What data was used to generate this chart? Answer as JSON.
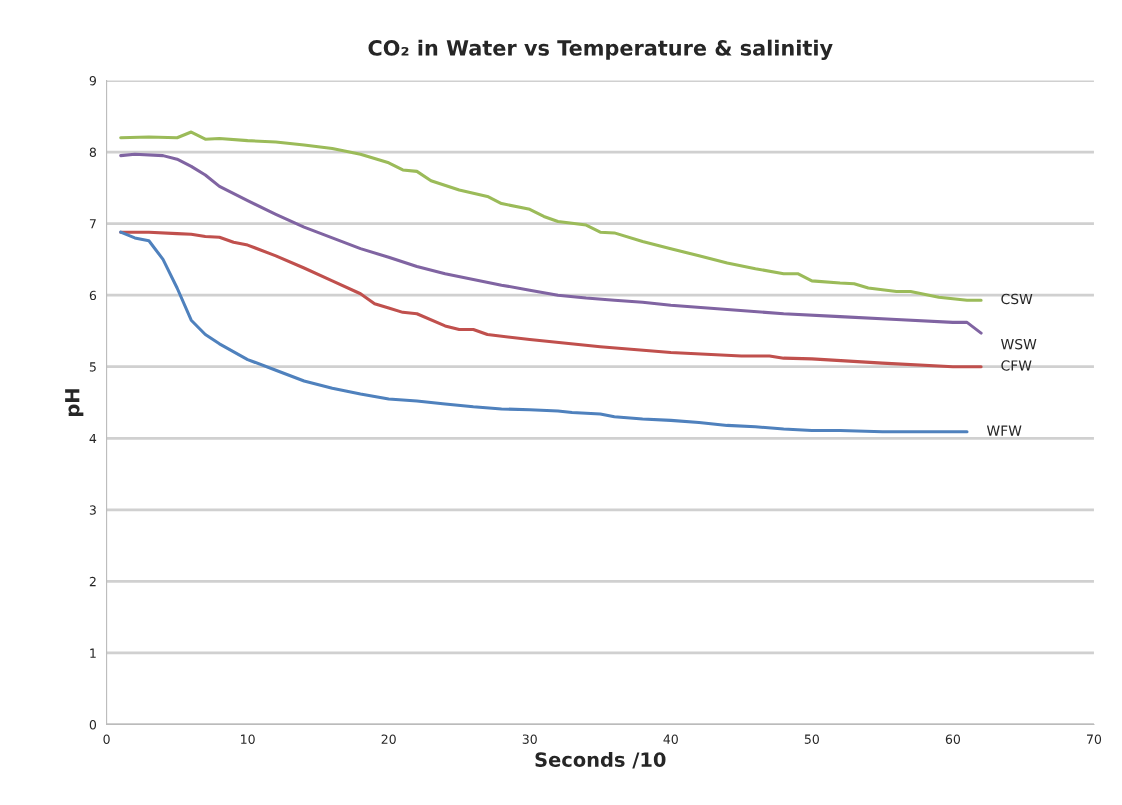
{
  "chart_data": {
    "type": "line",
    "title": "CO₂ in Water vs Temperature & salinitiy",
    "xlabel": "Seconds /10",
    "ylabel": "pH",
    "xlim": [
      0,
      70
    ],
    "xticks": [
      0,
      10,
      20,
      30,
      40,
      50,
      60,
      70
    ],
    "ylim": [
      0,
      9
    ],
    "yticks": [
      0,
      1,
      2,
      3,
      4,
      5,
      6,
      7,
      8,
      9
    ],
    "grid": "y",
    "legend": false,
    "marker": "none",
    "line_style": "solid",
    "series": [
      {
        "name": "CSW",
        "color": "#9bbb59",
        "x": [
          1,
          3,
          5,
          6,
          7,
          8,
          10,
          12,
          14,
          16,
          18,
          20,
          21,
          22,
          23,
          25,
          27,
          28,
          30,
          31,
          32,
          34,
          35,
          36,
          38,
          40,
          42,
          44,
          46,
          48,
          49,
          50,
          52,
          53,
          54,
          56,
          57,
          59,
          61,
          62
        ],
        "values": [
          8.2,
          8.21,
          8.2,
          8.28,
          8.18,
          8.19,
          8.16,
          8.14,
          8.1,
          8.05,
          7.97,
          7.85,
          7.75,
          7.73,
          7.6,
          7.47,
          7.38,
          7.28,
          7.2,
          7.1,
          7.03,
          6.98,
          6.88,
          6.87,
          6.75,
          6.65,
          6.55,
          6.45,
          6.37,
          6.3,
          6.3,
          6.2,
          6.17,
          6.16,
          6.1,
          6.05,
          6.05,
          5.97,
          5.93,
          5.93
        ]
      },
      {
        "name": "WSW",
        "color": "#8064a2",
        "x": [
          1,
          2,
          4,
          5,
          6,
          7,
          8,
          10,
          12,
          14,
          16,
          18,
          20,
          22,
          24,
          26,
          28,
          30,
          32,
          34,
          36,
          38,
          40,
          44,
          48,
          52,
          56,
          60,
          61,
          62
        ],
        "values": [
          7.95,
          7.97,
          7.95,
          7.9,
          7.8,
          7.68,
          7.52,
          7.32,
          7.13,
          6.95,
          6.8,
          6.65,
          6.53,
          6.4,
          6.3,
          6.22,
          6.14,
          6.07,
          6.0,
          5.96,
          5.93,
          5.9,
          5.86,
          5.8,
          5.74,
          5.7,
          5.66,
          5.62,
          5.62,
          5.47
        ]
      },
      {
        "name": "CFW",
        "color": "#c0504d",
        "x": [
          1,
          3,
          5,
          6,
          7,
          8,
          9,
          10,
          12,
          14,
          16,
          18,
          19,
          20,
          21,
          22,
          24,
          25,
          26,
          27,
          30,
          35,
          40,
          45,
          47,
          48,
          50,
          55,
          60,
          62
        ],
        "values": [
          6.88,
          6.88,
          6.86,
          6.85,
          6.82,
          6.81,
          6.74,
          6.7,
          6.55,
          6.38,
          6.2,
          6.02,
          5.88,
          5.82,
          5.76,
          5.74,
          5.57,
          5.52,
          5.52,
          5.45,
          5.38,
          5.28,
          5.2,
          5.15,
          5.15,
          5.12,
          5.11,
          5.05,
          5.0,
          5.0
        ]
      },
      {
        "name": "WFW",
        "color": "#4f81bd",
        "x": [
          1,
          2,
          3,
          4,
          5,
          6,
          7,
          8,
          10,
          12,
          14,
          16,
          18,
          20,
          22,
          24,
          26,
          28,
          30,
          32,
          33,
          35,
          36,
          38,
          40,
          42,
          44,
          46,
          48,
          50,
          52,
          55,
          58,
          61
        ],
        "values": [
          6.88,
          6.8,
          6.76,
          6.5,
          6.1,
          5.65,
          5.45,
          5.32,
          5.1,
          4.95,
          4.8,
          4.7,
          4.62,
          4.55,
          4.52,
          4.48,
          4.44,
          4.41,
          4.4,
          4.38,
          4.36,
          4.34,
          4.3,
          4.27,
          4.25,
          4.22,
          4.18,
          4.16,
          4.13,
          4.11,
          4.11,
          4.09,
          4.09,
          4.09
        ]
      }
    ]
  }
}
